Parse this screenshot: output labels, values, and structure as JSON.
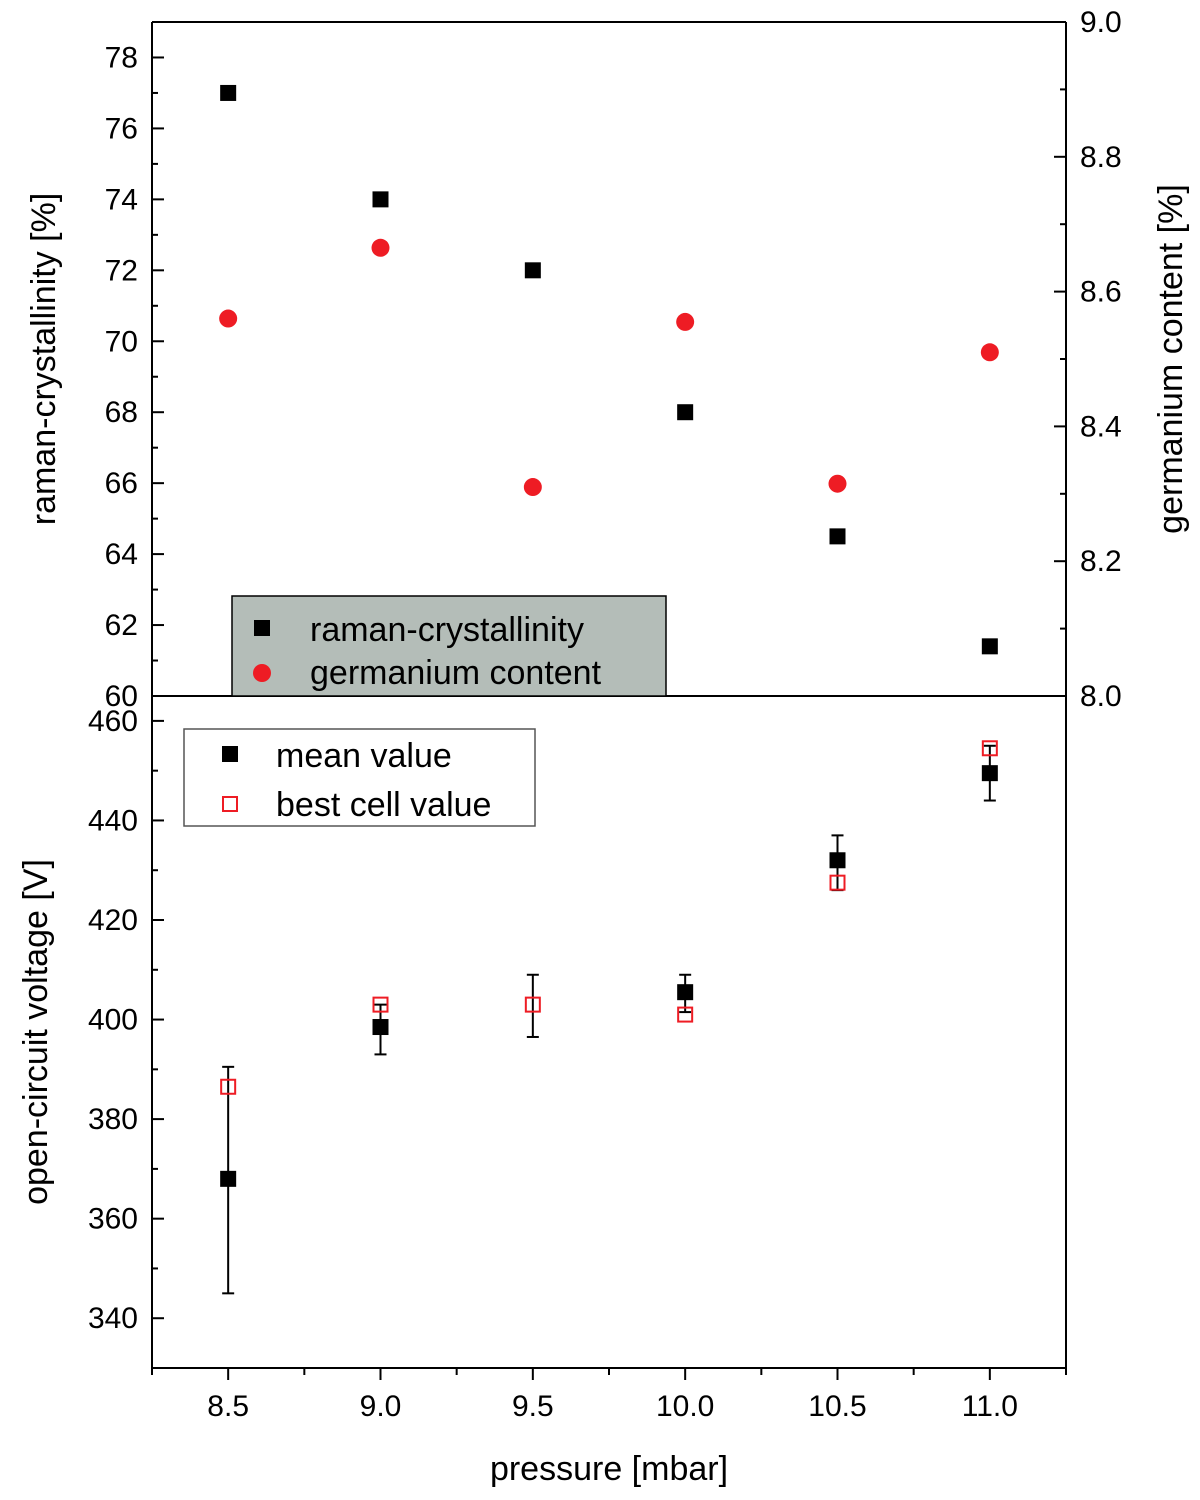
{
  "chart_data": [
    {
      "type": "scatter",
      "panel": "top",
      "xlabel": "pressure [mbar]",
      "ylabel": "raman-crystallinity [%]",
      "y2label": "germanium content [%]",
      "xlim": [
        8.25,
        11.25
      ],
      "ylim": [
        60,
        79
      ],
      "y2lim": [
        8.0,
        9.0
      ],
      "yticks": [
        60,
        62,
        64,
        66,
        68,
        70,
        72,
        74,
        76,
        78
      ],
      "y2ticks": [
        "8.0",
        "8.2",
        "8.4",
        "8.6",
        "8.8",
        "9.0"
      ],
      "legend": {
        "position": "bottom-left",
        "background": "#b4bdb8",
        "entries": [
          "raman-crystallinity",
          "germanium content"
        ]
      },
      "series": [
        {
          "name": "raman-crystallinity",
          "axis": "left",
          "marker": "filled-square",
          "color": "#000000",
          "x": [
            8.5,
            9.0,
            9.5,
            10.0,
            10.5,
            11.0
          ],
          "y": [
            77.0,
            74.0,
            72.0,
            68.0,
            64.5,
            61.4
          ]
        },
        {
          "name": "germanium content",
          "axis": "right",
          "marker": "filled-circle",
          "color": "#ee1c24",
          "x": [
            8.5,
            9.0,
            9.5,
            10.0,
            10.5,
            11.0
          ],
          "y": [
            8.56,
            8.665,
            8.31,
            8.555,
            8.315,
            8.51
          ]
        }
      ]
    },
    {
      "type": "scatter",
      "panel": "bottom",
      "xlabel": "pressure [mbar]",
      "ylabel": "open-circuit voltage [V]",
      "xlim": [
        8.25,
        11.25
      ],
      "ylim": [
        330,
        465
      ],
      "xticks": [
        "8.5",
        "9.0",
        "9.5",
        "10.0",
        "10.5",
        "11.0"
      ],
      "yticks": [
        340,
        360,
        380,
        400,
        420,
        440,
        460
      ],
      "legend": {
        "position": "top-left",
        "background": "#ffffff",
        "entries": [
          "mean value",
          "best cell value"
        ]
      },
      "series": [
        {
          "name": "mean value",
          "marker": "filled-square",
          "color": "#000000",
          "x": [
            8.5,
            9.0,
            9.5,
            10.0,
            10.5,
            11.0
          ],
          "y": [
            368.0,
            398.5,
            null,
            405.5,
            432.0,
            449.5
          ],
          "err_low": [
            345.0,
            393.0,
            396.5,
            401.5,
            426.0,
            444.0
          ],
          "err_high": [
            390.5,
            403.0,
            409.0,
            409.0,
            437.0,
            455.0
          ]
        },
        {
          "name": "best cell value",
          "marker": "open-square",
          "color": "#ee1c24",
          "x": [
            8.5,
            9.0,
            9.5,
            10.0,
            10.5,
            11.0
          ],
          "y": [
            386.5,
            403.0,
            403.0,
            401.0,
            427.5,
            454.5
          ]
        }
      ]
    }
  ]
}
